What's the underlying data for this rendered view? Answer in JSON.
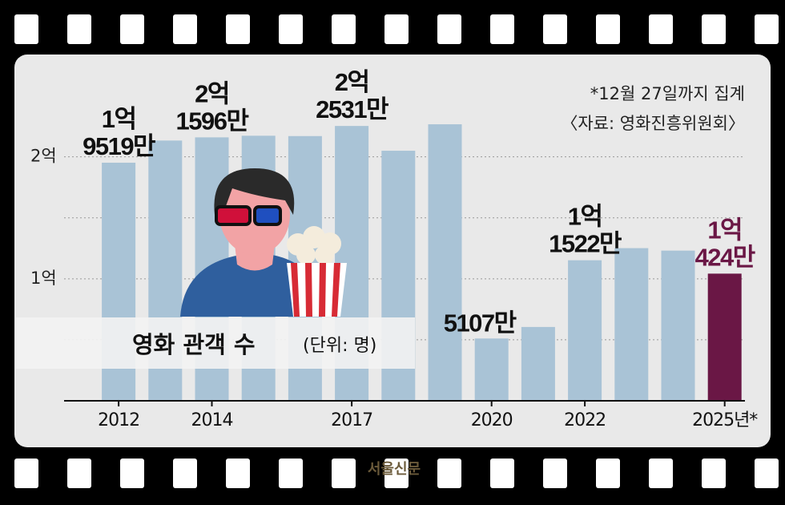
{
  "chart_data": {
    "type": "bar",
    "title": "영화 관객 수",
    "subtitle": "(단위: 명)",
    "annotations": [
      "*12월 27일까지 집계",
      "〈자료: 영화진흥위원회〉"
    ],
    "source": "서울신문",
    "categories": [
      "2012",
      null,
      "2014",
      null,
      null,
      "2017",
      null,
      null,
      "2020",
      null,
      "2022",
      null,
      null,
      "2025년*"
    ],
    "values": [
      195190000,
      213350000,
      215960000,
      217290000,
      217020000,
      225310000,
      205000000,
      226680000,
      51070000,
      60530000,
      115220000,
      125140000,
      123130000,
      104240000
    ],
    "value_labels": [
      "1억\n9519만",
      null,
      "2억\n1596만",
      null,
      null,
      "2억\n2531만",
      null,
      null,
      "5107만",
      null,
      "1억\n1522만",
      null,
      null,
      "1억\n424만"
    ],
    "colors": [
      "#a9c3d6",
      "#a9c3d6",
      "#a9c3d6",
      "#a9c3d6",
      "#a9c3d6",
      "#a9c3d6",
      "#a9c3d6",
      "#a9c3d6",
      "#a9c3d6",
      "#a9c3d6",
      "#a9c3d6",
      "#a9c3d6",
      "#a9c3d6",
      "#6a1745"
    ],
    "ylim": [
      0,
      230000000
    ],
    "yticks": [
      {
        "value": 100000000,
        "label": "1억"
      },
      {
        "value": 200000000,
        "label": "2억"
      }
    ],
    "minor_yticks": [
      50000000,
      150000000
    ],
    "grid": true
  }
}
